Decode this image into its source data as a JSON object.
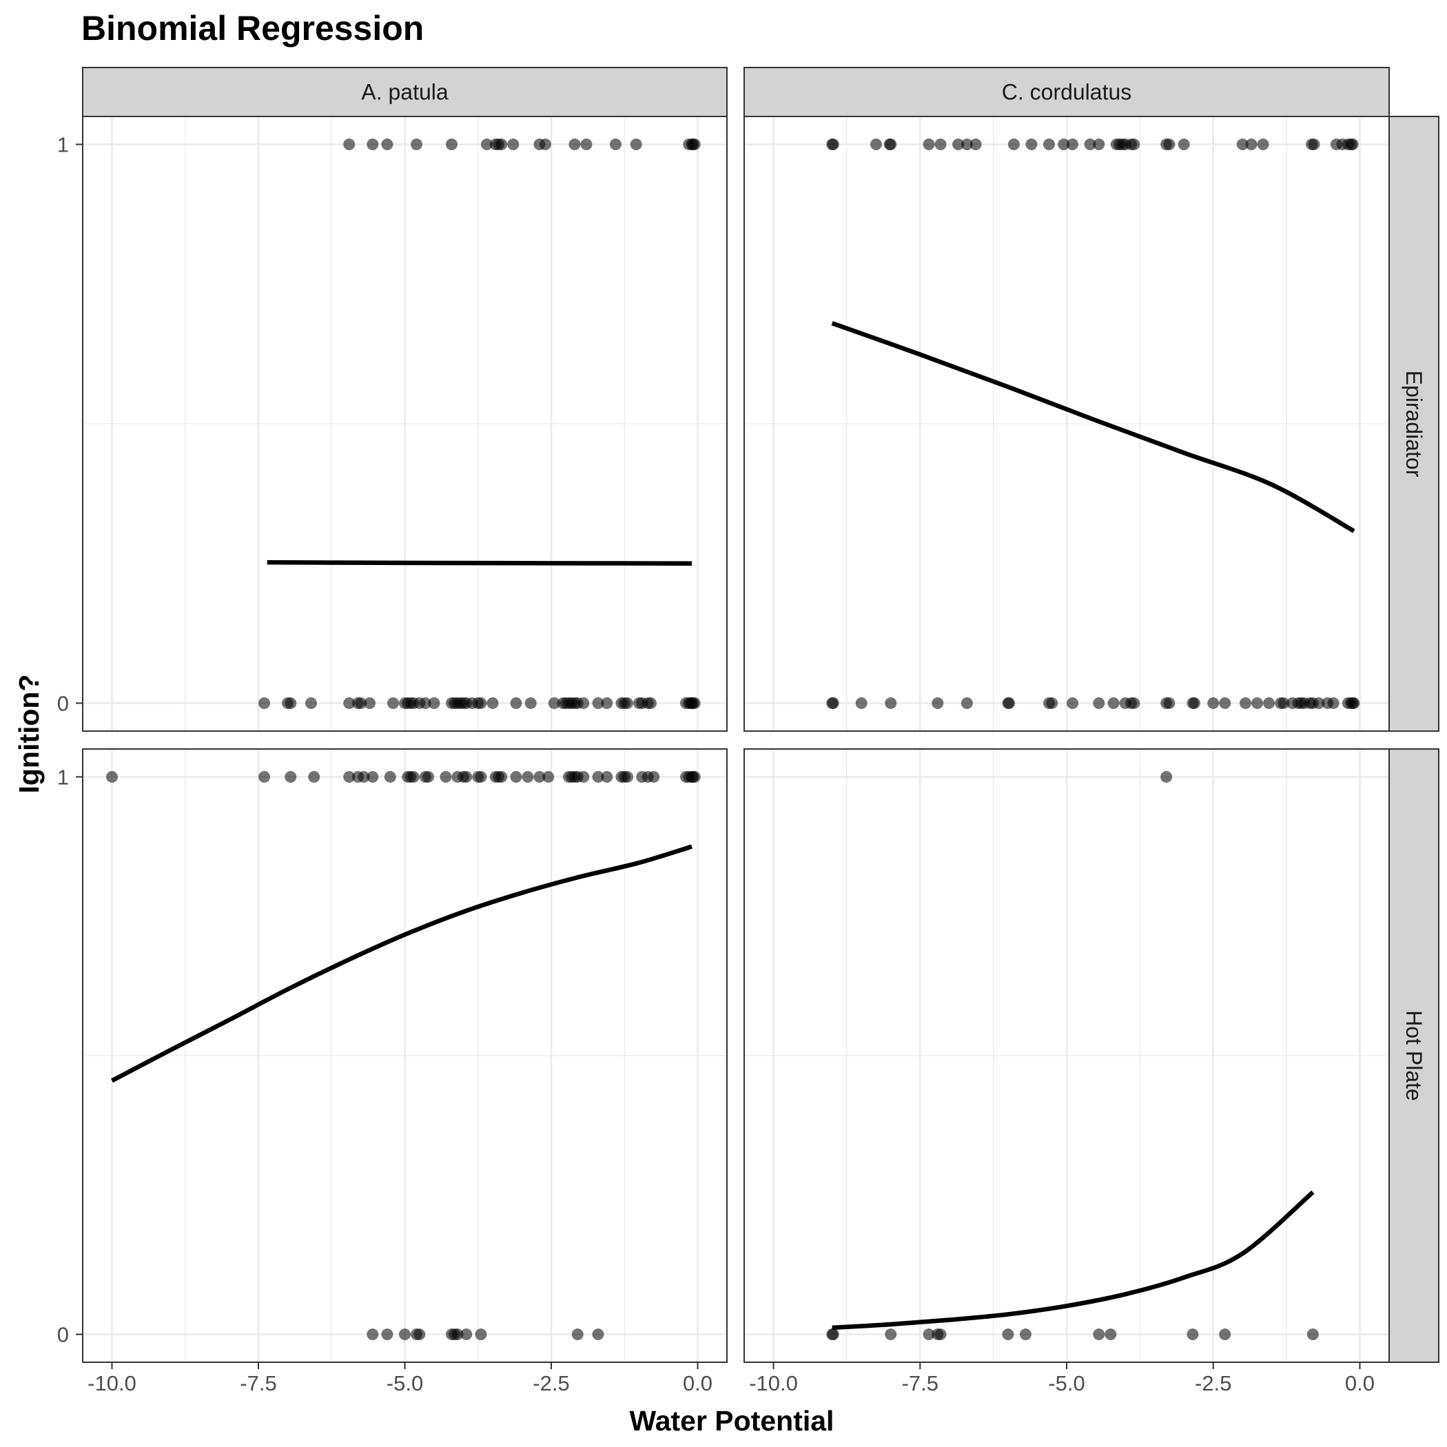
{
  "chart_data": {
    "type": "scatter",
    "title": "Binomial Regression",
    "xlabel": "Water Potential",
    "ylabel": "Ignition?",
    "xlim": [
      -10.5,
      0.5
    ],
    "ylim": [
      -0.05,
      1.05
    ],
    "x_ticks": [
      -10.0,
      -7.5,
      -5.0,
      -2.5,
      0.0
    ],
    "x_tick_labels": [
      "-10.0",
      "-7.5",
      "-5.0",
      "-2.5",
      "0.0"
    ],
    "y_ticks": [
      0,
      1
    ],
    "y_tick_labels": [
      "0",
      "1"
    ],
    "grid": true,
    "point_color": "#000000",
    "point_opacity": 0.55,
    "line_color": "#000000",
    "col_facets": [
      "A. patula",
      "C. cordulatus"
    ],
    "row_facets": [
      "Epiradiator",
      "Hot Plate"
    ],
    "panels": [
      {
        "row": "Epiradiator",
        "col": "A. patula",
        "points_y1": [
          -5.95,
          -5.55,
          -5.3,
          -4.8,
          -4.2,
          -3.6,
          -3.45,
          -3.4,
          -3.35,
          -3.15,
          -2.7,
          -2.6,
          -2.1,
          -1.9,
          -1.4,
          -1.05,
          -0.15,
          -0.1,
          -0.08,
          -0.05
        ],
        "points_y0": [
          -7.4,
          -7.0,
          -6.95,
          -6.6,
          -5.95,
          -5.8,
          -5.75,
          -5.6,
          -5.2,
          -5.0,
          -4.95,
          -4.9,
          -4.85,
          -4.75,
          -4.65,
          -4.5,
          -4.2,
          -4.15,
          -4.1,
          -4.05,
          -4.0,
          -3.95,
          -3.85,
          -3.75,
          -3.7,
          -3.5,
          -3.1,
          -2.85,
          -2.45,
          -2.3,
          -2.25,
          -2.2,
          -2.15,
          -2.1,
          -2.05,
          -1.95,
          -1.7,
          -1.55,
          -1.3,
          -1.25,
          -1.2,
          -1.0,
          -0.95,
          -0.85,
          -0.8,
          -0.2,
          -0.15,
          -0.12,
          -0.1,
          -0.08,
          -0.05
        ],
        "fit_x": [
          -7.35,
          -5.0,
          -2.5,
          -0.1
        ],
        "fit_y": [
          0.252,
          0.251,
          0.2505,
          0.25
        ]
      },
      {
        "row": "Epiradiator",
        "col": "C. cordulatus",
        "points_y1": [
          -9.0,
          -8.98,
          -8.25,
          -8.02,
          -8.0,
          -7.35,
          -7.15,
          -6.85,
          -6.7,
          -6.55,
          -5.9,
          -5.6,
          -5.3,
          -5.05,
          -4.9,
          -4.6,
          -4.45,
          -4.15,
          -4.1,
          -4.05,
          -4.0,
          -3.9,
          -3.85,
          -3.3,
          -3.25,
          -3.0,
          -2.0,
          -1.85,
          -1.65,
          -0.82,
          -0.78,
          -0.4,
          -0.3,
          -0.2,
          -0.15,
          -0.12
        ],
        "points_y0": [
          -9.0,
          -8.98,
          -8.5,
          -8.0,
          -7.2,
          -6.7,
          -6.0,
          -5.98,
          -5.3,
          -5.25,
          -4.9,
          -4.45,
          -4.2,
          -4.0,
          -3.9,
          -3.85,
          -3.3,
          -3.25,
          -2.85,
          -2.82,
          -2.5,
          -2.3,
          -1.95,
          -1.75,
          -1.55,
          -1.35,
          -1.3,
          -1.15,
          -1.05,
          -1.0,
          -0.95,
          -0.85,
          -0.8,
          -0.7,
          -0.55,
          -0.45,
          -0.2,
          -0.15,
          -0.12,
          -0.1
        ],
        "fit_x": [
          -9.0,
          -7.5,
          -6.0,
          -4.5,
          -3.0,
          -1.5,
          -0.1
        ],
        "fit_y": [
          0.68,
          0.624,
          0.566,
          0.506,
          0.448,
          0.391,
          0.308
        ]
      },
      {
        "row": "Hot Plate",
        "col": "A. patula",
        "points_y1": [
          -10.0,
          -7.4,
          -6.95,
          -6.55,
          -5.95,
          -5.8,
          -5.7,
          -5.55,
          -5.25,
          -4.95,
          -4.9,
          -4.85,
          -4.65,
          -4.6,
          -4.3,
          -4.1,
          -4.0,
          -3.95,
          -3.75,
          -3.7,
          -3.45,
          -3.4,
          -3.35,
          -3.1,
          -2.9,
          -2.7,
          -2.55,
          -2.2,
          -2.15,
          -2.1,
          -2.05,
          -1.95,
          -1.7,
          -1.55,
          -1.3,
          -1.25,
          -1.2,
          -0.95,
          -0.85,
          -0.75,
          -0.2,
          -0.15,
          -0.1,
          -0.08,
          -0.05
        ],
        "points_y0": [
          -5.55,
          -5.3,
          -5.0,
          -4.8,
          -4.75,
          -4.2,
          -4.15,
          -4.1,
          -3.95,
          -3.7,
          -2.05,
          -1.7
        ],
        "fit_x": [
          -10.0,
          -9.0,
          -8.0,
          -7.0,
          -6.0,
          -5.0,
          -4.0,
          -3.0,
          -2.0,
          -1.0,
          -0.1
        ],
        "fit_y": [
          0.455,
          0.51,
          0.564,
          0.619,
          0.67,
          0.717,
          0.758,
          0.792,
          0.821,
          0.846,
          0.875
        ]
      },
      {
        "row": "Hot Plate",
        "col": "C. cordulatus",
        "points_y1": [
          -3.3
        ],
        "points_y0": [
          -9.0,
          -8.98,
          -8.0,
          -7.35,
          -7.2,
          -7.15,
          -6.0,
          -5.7,
          -4.45,
          -4.25,
          -2.85,
          -2.3,
          -0.8
        ],
        "fit_x": [
          -9.0,
          -8.0,
          -7.0,
          -6.0,
          -5.0,
          -4.0,
          -3.0,
          -2.0,
          -0.8
        ],
        "fit_y": [
          0.012,
          0.018,
          0.026,
          0.036,
          0.051,
          0.072,
          0.102,
          0.145,
          0.255
        ]
      }
    ]
  }
}
